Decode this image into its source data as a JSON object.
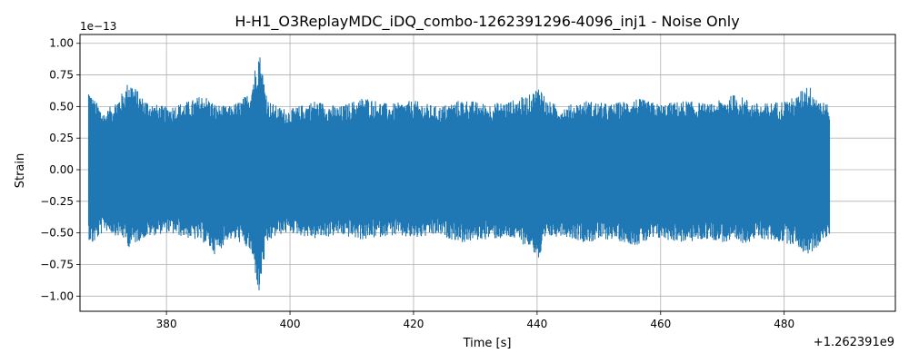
{
  "chart_data": {
    "type": "line",
    "title": "H-H1_O3ReplayMDC_iDQ_combo-1262391296-4096_inj1 - Noise Only",
    "xlabel": "Time [s]",
    "ylabel": "Strain",
    "x_offset_label": "+1.262391e9",
    "y_scale_label": "1e−13",
    "xlim": [
      366.0,
      498.0
    ],
    "ylim": [
      -1.12,
      1.07
    ],
    "x_ticks": [
      380,
      400,
      420,
      440,
      460,
      480
    ],
    "x_tick_labels": [
      "380",
      "400",
      "420",
      "440",
      "460",
      "480"
    ],
    "y_ticks": [
      -1.0,
      -0.75,
      -0.5,
      -0.25,
      0.0,
      0.25,
      0.5,
      0.75,
      1.0
    ],
    "y_tick_labels": [
      "−1.00",
      "−0.75",
      "−0.50",
      "−0.25",
      "0.00",
      "0.25",
      "0.50",
      "0.75",
      "1.00"
    ],
    "grid": true,
    "legend": "none",
    "series": [
      {
        "color": "#1f77b4",
        "x_start": 367.4,
        "x_end": 487.4,
        "envelope_times": [
          367.4,
          368.0,
          370.0,
          373.0,
          374.0,
          376.0,
          378.0,
          380.0,
          384.0,
          386.0,
          388.0,
          390.0,
          392.0,
          393.5,
          394.5,
          395.0,
          395.5,
          396.5,
          398.0,
          400.0,
          404.0,
          408.0,
          412.0,
          416.0,
          420.0,
          424.0,
          428.0,
          432.0,
          436.0,
          439.0,
          440.5,
          441.5,
          444.0,
          448.0,
          452.0,
          456.0,
          460.0,
          464.0,
          468.0,
          472.0,
          476.0,
          480.0,
          482.0,
          483.5,
          484.5,
          486.0,
          487.4
        ],
        "envelope_upper": [
          0.66,
          0.58,
          0.45,
          0.62,
          0.72,
          0.58,
          0.52,
          0.5,
          0.55,
          0.6,
          0.52,
          0.5,
          0.55,
          0.62,
          0.85,
          0.96,
          0.8,
          0.55,
          0.5,
          0.48,
          0.55,
          0.5,
          0.58,
          0.52,
          0.55,
          0.5,
          0.56,
          0.52,
          0.55,
          0.6,
          0.68,
          0.55,
          0.5,
          0.55,
          0.52,
          0.57,
          0.52,
          0.55,
          0.52,
          0.6,
          0.52,
          0.55,
          0.58,
          0.68,
          0.65,
          0.55,
          0.5
        ],
        "envelope_lower": [
          -0.55,
          -0.6,
          -0.48,
          -0.55,
          -0.62,
          -0.55,
          -0.52,
          -0.5,
          -0.55,
          -0.58,
          -0.68,
          -0.55,
          -0.58,
          -0.65,
          -0.85,
          -1.02,
          -0.8,
          -0.58,
          -0.52,
          -0.5,
          -0.55,
          -0.52,
          -0.56,
          -0.52,
          -0.55,
          -0.52,
          -0.58,
          -0.55,
          -0.55,
          -0.62,
          -0.74,
          -0.55,
          -0.52,
          -0.58,
          -0.55,
          -0.6,
          -0.55,
          -0.58,
          -0.55,
          -0.6,
          -0.55,
          -0.58,
          -0.6,
          -0.68,
          -0.66,
          -0.58,
          -0.52
        ]
      }
    ]
  }
}
